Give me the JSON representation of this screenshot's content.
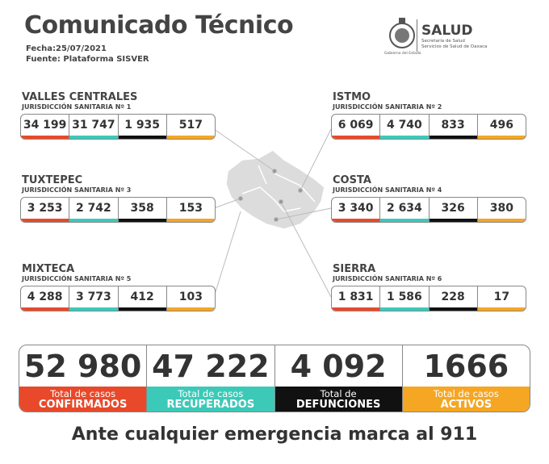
{
  "header": {
    "title": "Comunicado Técnico",
    "date": "Fecha:25/07/2021",
    "source": "Fuente: Plataforma SISVER"
  },
  "logo": {
    "name": "SALUD",
    "line1": "Secretaría de Salud",
    "line2": "Servicios de Salud de Oaxaca",
    "government": "Gobierno del Estado"
  },
  "regions": [
    {
      "name": "VALLES CENTRALES",
      "jurisdiction": "JURISDICCIÓN SANITARIA Nº 1",
      "values": [
        "34 199",
        "31 747",
        "1 935",
        "517"
      ]
    },
    {
      "name": "ISTMO",
      "jurisdiction": "JURISDICCIÓN SANITARIA Nº 2",
      "values": [
        "6 069",
        "4 740",
        "833",
        "496"
      ]
    },
    {
      "name": "TUXTEPEC",
      "jurisdiction": "JURISDICCIÓN SANITARIA Nº 3",
      "values": [
        "3 253",
        "2 742",
        "358",
        "153"
      ]
    },
    {
      "name": "COSTA",
      "jurisdiction": "JURISDICCIÓN SANITARIA Nº 4",
      "values": [
        "3 340",
        "2 634",
        "326",
        "380"
      ]
    },
    {
      "name": "MIXTECA",
      "jurisdiction": "JURISDICCIÓN SANITARIA Nº 5",
      "values": [
        "4 288",
        "3 773",
        "412",
        "103"
      ]
    },
    {
      "name": "SIERRA",
      "jurisdiction": "JURISDICCIÓN SANITARIA Nº 6",
      "values": [
        "1 831",
        "1 586",
        "228",
        "17"
      ]
    }
  ],
  "totals": [
    {
      "value": "52 980",
      "label": "Total de casos",
      "category": "CONFIRMADOS"
    },
    {
      "value": "47 222",
      "label": "Total de casos",
      "category": "RECUPERADOS"
    },
    {
      "value": "4 092",
      "label": "Total de",
      "category": "DEFUNCIONES"
    },
    {
      "value": "1666",
      "label": "Total de casos",
      "category": "ACTIVOS"
    }
  ],
  "footer": "Ante cualquier emergencia marca al 911"
}
